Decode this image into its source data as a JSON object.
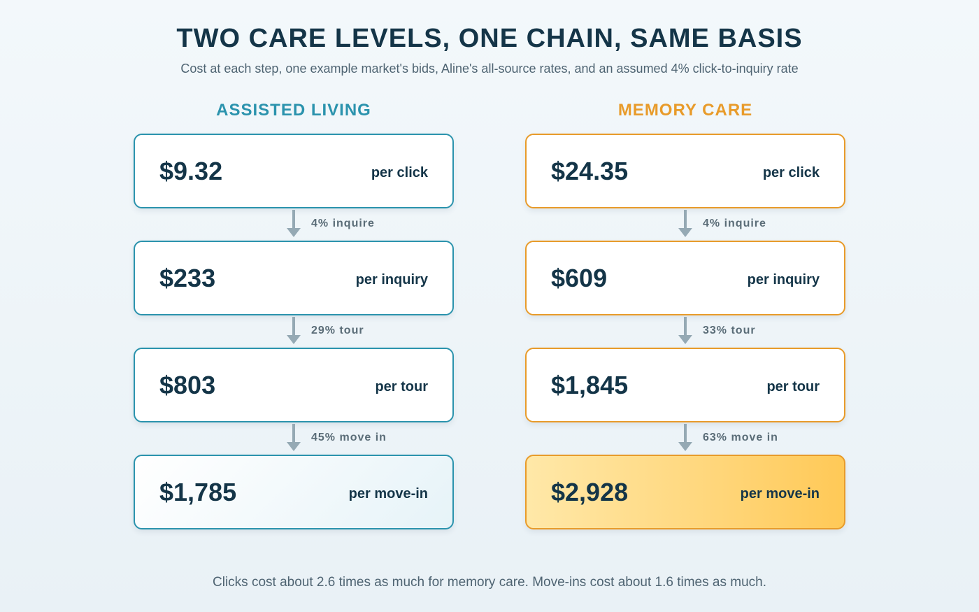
{
  "title": "TWO CARE LEVELS, ONE CHAIN, SAME BASIS",
  "subtitle": "Cost at each step, one example market's bids, Aline's all-source rates, and an assumed 4% click-to-inquiry rate",
  "columns": [
    {
      "name": "ASSISTED LIVING",
      "accent": "#2b93ad",
      "steps": [
        {
          "amount": "$9.32",
          "unit": "per click"
        },
        {
          "amount": "$233",
          "unit": "per inquiry"
        },
        {
          "amount": "$803",
          "unit": "per tour"
        },
        {
          "amount": "$1,785",
          "unit": "per move-in"
        }
      ],
      "rates": [
        "4% inquire",
        "29% tour",
        "45% move in"
      ]
    },
    {
      "name": "MEMORY CARE",
      "accent": "#e89b2a",
      "steps": [
        {
          "amount": "$24.35",
          "unit": "per click"
        },
        {
          "amount": "$609",
          "unit": "per inquiry"
        },
        {
          "amount": "$1,845",
          "unit": "per tour"
        },
        {
          "amount": "$2,928",
          "unit": "per move-in"
        }
      ],
      "rates": [
        "4% inquire",
        "33% tour",
        "63% move in"
      ]
    }
  ],
  "footnote": "Clicks cost about 2.6 times as much for memory care. Move-ins cost about 1.6 times as much.",
  "colors": {
    "text": "#143548",
    "muted": "#4f6472",
    "connector": "#95a9b4"
  }
}
